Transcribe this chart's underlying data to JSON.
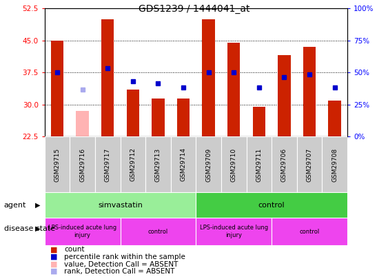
{
  "title": "GDS1239 / 1444041_at",
  "samples": [
    "GSM29715",
    "GSM29716",
    "GSM29717",
    "GSM29712",
    "GSM29713",
    "GSM29714",
    "GSM29709",
    "GSM29710",
    "GSM29711",
    "GSM29706",
    "GSM29707",
    "GSM29708"
  ],
  "counts": [
    45.0,
    null,
    50.0,
    33.5,
    31.5,
    31.5,
    50.0,
    44.5,
    29.5,
    41.5,
    43.5,
    31.0
  ],
  "absent_count": [
    null,
    28.5,
    null,
    null,
    null,
    null,
    null,
    null,
    null,
    null,
    null,
    null
  ],
  "percentile_ranks": [
    37.5,
    null,
    38.5,
    35.5,
    35.0,
    34.0,
    37.5,
    37.5,
    34.0,
    36.5,
    37.0,
    34.0
  ],
  "absent_rank": [
    null,
    33.5,
    null,
    null,
    null,
    null,
    null,
    null,
    null,
    null,
    null,
    null
  ],
  "ylim": [
    22.5,
    52.5
  ],
  "yticks_left": [
    22.5,
    30.0,
    37.5,
    45.0,
    52.5
  ],
  "yticks_right": [
    0,
    25,
    50,
    75,
    100
  ],
  "bar_color": "#cc2200",
  "absent_bar_color": "#ffb3b3",
  "percentile_color": "#0000cc",
  "absent_percentile_color": "#aaaaee",
  "agent_groups": [
    {
      "label": "simvastatin",
      "start": 0,
      "end": 6,
      "color": "#99ee99"
    },
    {
      "label": "control",
      "start": 6,
      "end": 12,
      "color": "#44cc44"
    }
  ],
  "disease_groups": [
    {
      "label": "LPS-induced acute lung\ninjury",
      "start": 0,
      "end": 3,
      "color": "#ee44ee"
    },
    {
      "label": "control",
      "start": 3,
      "end": 6,
      "color": "#ee44ee"
    },
    {
      "label": "LPS-induced acute lung\ninjury",
      "start": 6,
      "end": 9,
      "color": "#ee44ee"
    },
    {
      "label": "control",
      "start": 9,
      "end": 12,
      "color": "#ee44ee"
    }
  ],
  "legend_items": [
    {
      "label": "count",
      "color": "#cc2200"
    },
    {
      "label": "percentile rank within the sample",
      "color": "#0000cc"
    },
    {
      "label": "value, Detection Call = ABSENT",
      "color": "#ffb3b3"
    },
    {
      "label": "rank, Detection Call = ABSENT",
      "color": "#aaaaee"
    }
  ]
}
